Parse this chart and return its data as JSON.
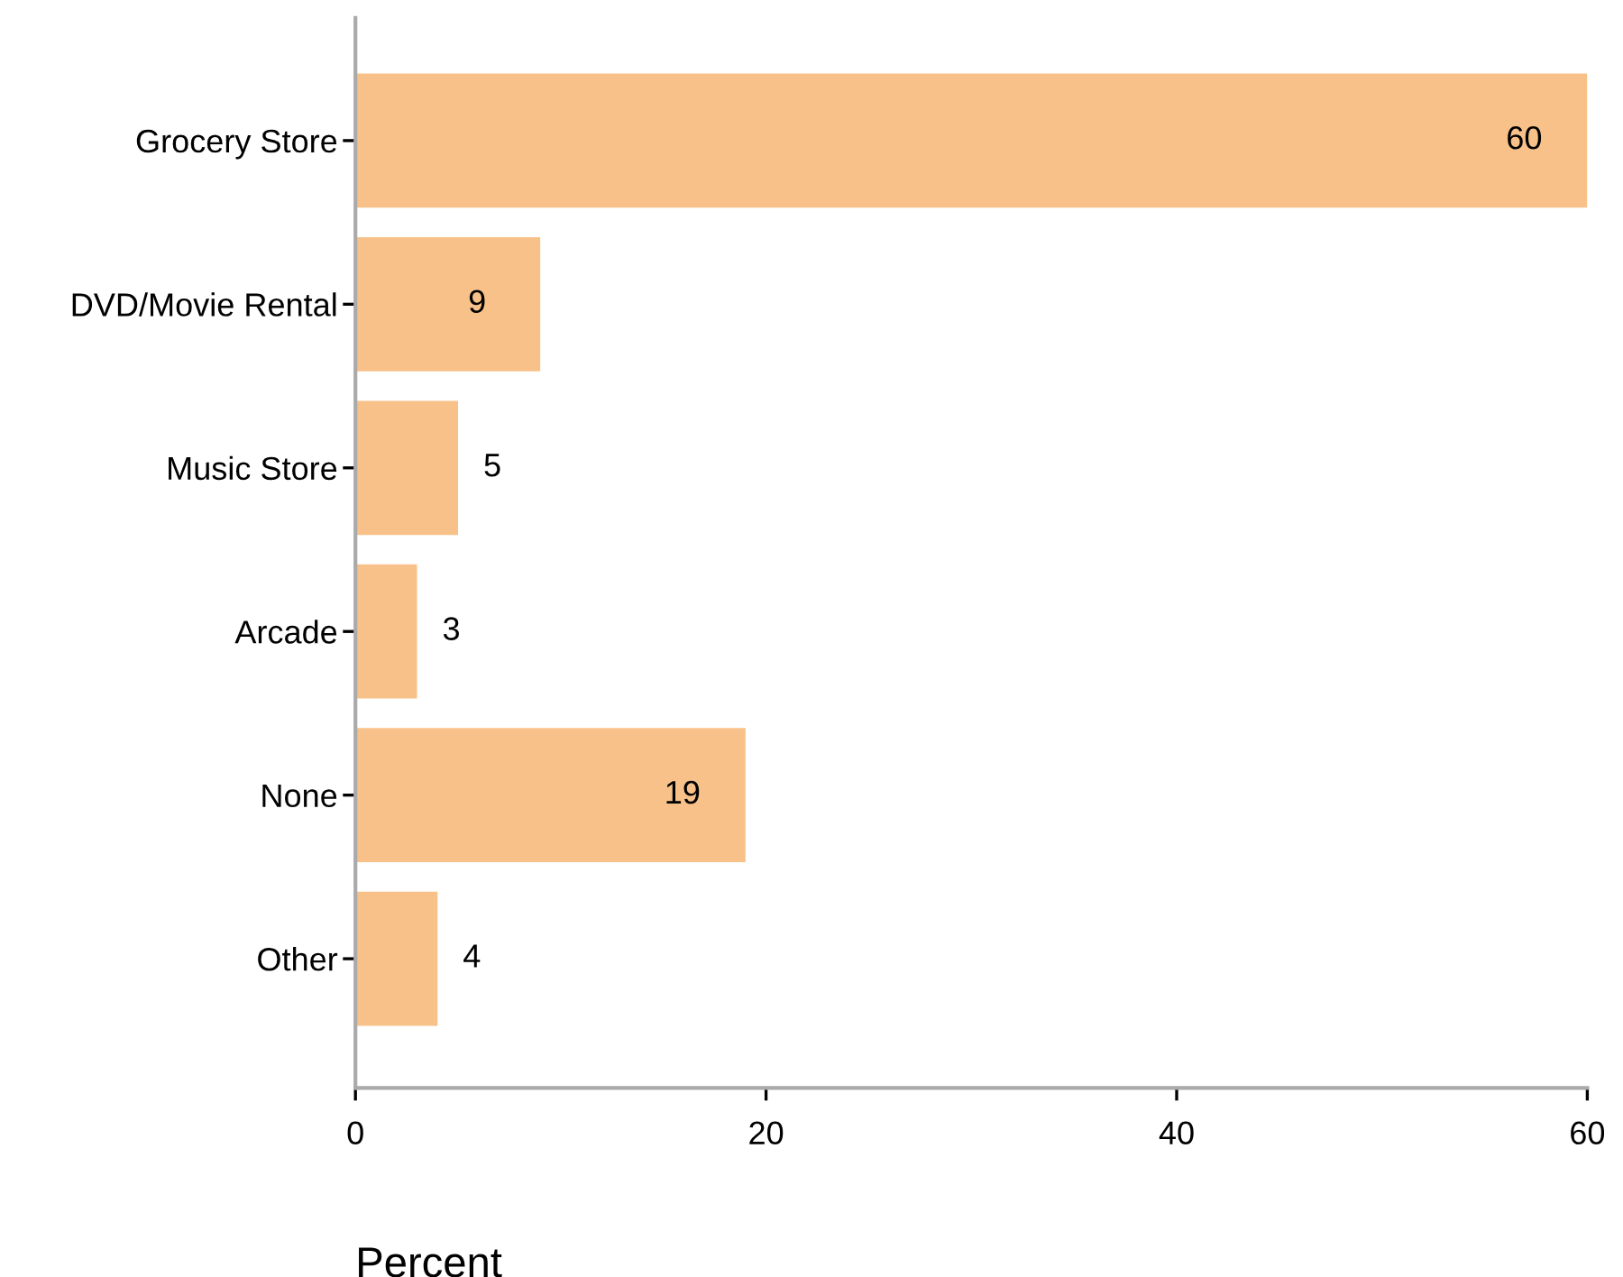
{
  "chart_data": {
    "type": "bar",
    "orientation": "horizontal",
    "categories": [
      "Grocery Store",
      "DVD/Movie Rental",
      "Music Store",
      "Arcade",
      "None",
      "Other"
    ],
    "values": [
      60,
      9,
      5,
      3,
      19,
      4
    ],
    "color": "#f8c189",
    "xlim": [
      0,
      60
    ],
    "xticks": [
      0,
      20,
      40,
      60
    ],
    "xlabel": "Percent",
    "data_labels": true,
    "grid": false
  }
}
